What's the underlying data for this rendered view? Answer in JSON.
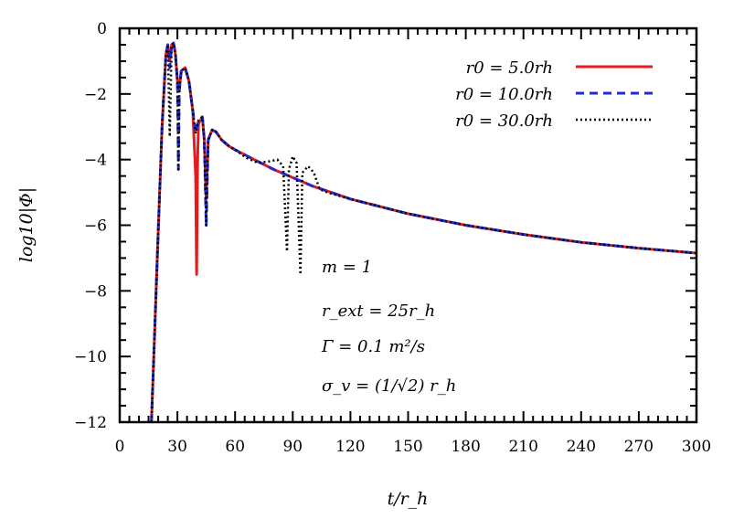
{
  "chart_data": {
    "type": "line",
    "xlabel": "t/r_h",
    "ylabel": "log10|Φ|",
    "xlim": [
      0,
      300
    ],
    "ylim": [
      -12,
      0
    ],
    "x_ticks": [
      0,
      30,
      60,
      90,
      120,
      150,
      180,
      210,
      240,
      270,
      300
    ],
    "y_ticks": [
      0,
      -2,
      -4,
      -6,
      -8,
      -10,
      -12
    ],
    "x_tick_labels": [
      "0",
      "30",
      "60",
      "90",
      "120",
      "150",
      "180",
      "210",
      "240",
      "270",
      "300"
    ],
    "y_tick_labels": [
      "0",
      "−2",
      "−4",
      "−6",
      "−8",
      "−10",
      "−12"
    ],
    "legend_position": "top-right",
    "grid": false,
    "annotations": [
      "m = 1",
      "r_ext = 25r_h",
      "Γ = 0.1 m²/s",
      "σ_v = (1/√2) r_h"
    ],
    "series": [
      {
        "name": "r0 = 5.0rh",
        "color": "#e41a1c",
        "style": "solid",
        "points": [
          [
            16.5,
            -12
          ],
          [
            18,
            -9.5
          ],
          [
            20,
            -6.2
          ],
          [
            22,
            -3
          ],
          [
            24,
            -0.8
          ],
          [
            25,
            -0.5
          ],
          [
            26,
            -1.0
          ],
          [
            27,
            -0.5
          ],
          [
            28,
            -0.45
          ],
          [
            29,
            -0.8
          ],
          [
            30,
            -1.6
          ],
          [
            31,
            -1.8
          ],
          [
            32,
            -1.3
          ],
          [
            34,
            -1.2
          ],
          [
            36,
            -1.6
          ],
          [
            38,
            -2.5
          ],
          [
            39.5,
            -4.5
          ],
          [
            40,
            -7.5
          ],
          [
            40.5,
            -4.0
          ],
          [
            41,
            -2.9
          ],
          [
            43,
            -2.7
          ],
          [
            44,
            -3.4
          ],
          [
            45,
            -5.2
          ],
          [
            46,
            -3.4
          ],
          [
            48,
            -3.1
          ],
          [
            50,
            -3.15
          ],
          [
            53,
            -3.4
          ],
          [
            57,
            -3.6
          ],
          [
            60,
            -3.7
          ],
          [
            70,
            -4.0
          ],
          [
            80,
            -4.3
          ],
          [
            90,
            -4.55
          ],
          [
            100,
            -4.8
          ],
          [
            110,
            -5.0
          ],
          [
            120,
            -5.2
          ],
          [
            150,
            -5.65
          ],
          [
            180,
            -6.0
          ],
          [
            210,
            -6.28
          ],
          [
            240,
            -6.52
          ],
          [
            270,
            -6.7
          ],
          [
            300,
            -6.85
          ]
        ]
      },
      {
        "name": "r0 = 10.0rh",
        "color": "#1f2bd6",
        "style": "dashed",
        "points": [
          [
            16.5,
            -12
          ],
          [
            18,
            -9.5
          ],
          [
            20,
            -6.2
          ],
          [
            22,
            -3
          ],
          [
            24,
            -0.8
          ],
          [
            25,
            -0.5
          ],
          [
            26,
            -1.2
          ],
          [
            27,
            -0.5
          ],
          [
            28,
            -0.45
          ],
          [
            29,
            -0.8
          ],
          [
            30,
            -1.6
          ],
          [
            30.5,
            -4.3
          ],
          [
            31,
            -1.9
          ],
          [
            32,
            -1.3
          ],
          [
            34,
            -1.2
          ],
          [
            36,
            -1.6
          ],
          [
            38,
            -2.5
          ],
          [
            39.5,
            -3.2
          ],
          [
            41,
            -2.8
          ],
          [
            43,
            -2.7
          ],
          [
            44,
            -3.4
          ],
          [
            45,
            -6.0
          ],
          [
            46,
            -3.4
          ],
          [
            48,
            -3.1
          ],
          [
            50,
            -3.15
          ],
          [
            53,
            -3.4
          ],
          [
            57,
            -3.6
          ],
          [
            60,
            -3.7
          ],
          [
            70,
            -4.0
          ],
          [
            80,
            -4.3
          ],
          [
            90,
            -4.55
          ],
          [
            100,
            -4.8
          ],
          [
            110,
            -5.0
          ],
          [
            120,
            -5.2
          ],
          [
            150,
            -5.65
          ],
          [
            180,
            -6.0
          ],
          [
            210,
            -6.28
          ],
          [
            240,
            -6.52
          ],
          [
            270,
            -6.7
          ],
          [
            300,
            -6.85
          ]
        ]
      },
      {
        "name": "r0 = 30.0rh",
        "color": "#000000",
        "style": "dotted",
        "points": [
          [
            16.5,
            -12
          ],
          [
            18,
            -9.5
          ],
          [
            20,
            -6.2
          ],
          [
            22,
            -3
          ],
          [
            24,
            -0.8
          ],
          [
            25,
            -0.5
          ],
          [
            26,
            -3.3
          ],
          [
            27,
            -0.5
          ],
          [
            28,
            -0.45
          ],
          [
            29,
            -0.8
          ],
          [
            30,
            -1.6
          ],
          [
            30.5,
            -4.3
          ],
          [
            31,
            -1.9
          ],
          [
            32,
            -1.3
          ],
          [
            34,
            -1.2
          ],
          [
            36,
            -1.6
          ],
          [
            38,
            -2.5
          ],
          [
            39.5,
            -3.2
          ],
          [
            41,
            -2.8
          ],
          [
            43,
            -2.7
          ],
          [
            44,
            -3.4
          ],
          [
            45,
            -6.0
          ],
          [
            46,
            -3.4
          ],
          [
            48,
            -3.1
          ],
          [
            50,
            -3.15
          ],
          [
            53,
            -3.4
          ],
          [
            57,
            -3.6
          ],
          [
            60,
            -3.7
          ],
          [
            66,
            -3.95
          ],
          [
            72,
            -4.1
          ],
          [
            78,
            -4.05
          ],
          [
            82,
            -4.0
          ],
          [
            85,
            -4.2
          ],
          [
            87,
            -6.8
          ],
          [
            88,
            -4.3
          ],
          [
            90,
            -3.9
          ],
          [
            92,
            -4.1
          ],
          [
            94,
            -7.5
          ],
          [
            95,
            -4.4
          ],
          [
            98,
            -4.2
          ],
          [
            101,
            -4.4
          ],
          [
            104,
            -4.9
          ],
          [
            108,
            -5.0
          ],
          [
            120,
            -5.2
          ],
          [
            150,
            -5.65
          ],
          [
            180,
            -6.0
          ],
          [
            210,
            -6.28
          ],
          [
            240,
            -6.52
          ],
          [
            270,
            -6.7
          ],
          [
            300,
            -6.85
          ]
        ]
      }
    ]
  }
}
